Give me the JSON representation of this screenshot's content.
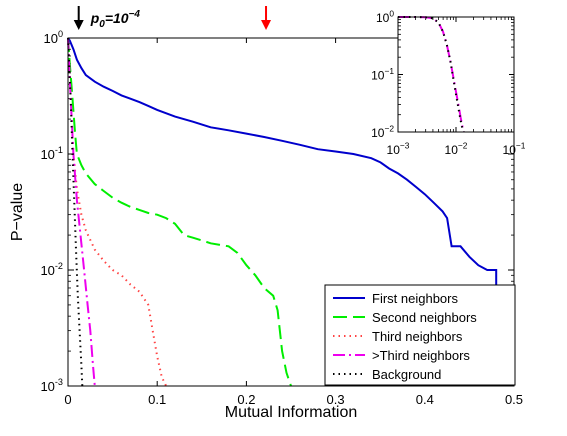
{
  "chart_data": [
    {
      "type": "line",
      "title": "",
      "xlabel": "Mutual Information",
      "ylabel": "P−value",
      "xscale": "linear",
      "yscale": "log",
      "xlim": [
        0,
        0.5
      ],
      "ylim": [
        0.001,
        1
      ],
      "x_ticks": [
        {
          "value": 0,
          "label": "0"
        },
        {
          "value": 0.1,
          "label": "0.1"
        },
        {
          "value": 0.2,
          "label": "0.2"
        },
        {
          "value": 0.3,
          "label": "0.3"
        },
        {
          "value": 0.4,
          "label": "0.4"
        },
        {
          "value": 0.5,
          "label": "0.5"
        }
      ],
      "y_ticks": [
        {
          "value": 1,
          "base": "10",
          "exp": "0"
        },
        {
          "value": 0.1,
          "base": "10",
          "exp": "-1"
        },
        {
          "value": 0.01,
          "base": "10",
          "exp": "-2"
        },
        {
          "value": 0.001,
          "base": "10",
          "exp": "-3"
        }
      ],
      "grid": false,
      "legend_position": "bottom-right",
      "annotations": [
        {
          "name": "p0-arrow",
          "x": 0.012,
          "color": "#000000",
          "label_main": "p",
          "label_sub": "0",
          "label_eq": "=10",
          "label_sup": "−4"
        },
        {
          "name": "threshold-arrow",
          "x": 0.222,
          "color": "#ff0000"
        }
      ],
      "series": [
        {
          "name": "First neighbors",
          "color": "#0000cc",
          "dash": "solid",
          "points": [
            [
              0,
              1
            ],
            [
              0.002,
              0.95
            ],
            [
              0.006,
              0.8
            ],
            [
              0.01,
              0.65
            ],
            [
              0.015,
              0.55
            ],
            [
              0.02,
              0.48
            ],
            [
              0.03,
              0.42
            ],
            [
              0.04,
              0.38
            ],
            [
              0.05,
              0.35
            ],
            [
              0.06,
              0.32
            ],
            [
              0.07,
              0.3
            ],
            [
              0.08,
              0.28
            ],
            [
              0.09,
              0.26
            ],
            [
              0.1,
              0.24
            ],
            [
              0.12,
              0.21
            ],
            [
              0.14,
              0.19
            ],
            [
              0.16,
              0.17
            ],
            [
              0.18,
              0.16
            ],
            [
              0.2,
              0.15
            ],
            [
              0.22,
              0.14
            ],
            [
              0.24,
              0.13
            ],
            [
              0.26,
              0.12
            ],
            [
              0.28,
              0.11
            ],
            [
              0.3,
              0.105
            ],
            [
              0.32,
              0.1
            ],
            [
              0.34,
              0.092
            ],
            [
              0.35,
              0.085
            ],
            [
              0.36,
              0.075
            ],
            [
              0.37,
              0.068
            ],
            [
              0.38,
              0.06
            ],
            [
              0.39,
              0.052
            ],
            [
              0.4,
              0.045
            ],
            [
              0.41,
              0.038
            ],
            [
              0.42,
              0.032
            ],
            [
              0.425,
              0.028
            ],
            [
              0.43,
              0.016
            ],
            [
              0.44,
              0.016
            ],
            [
              0.45,
              0.013
            ],
            [
              0.46,
              0.011
            ],
            [
              0.47,
              0.01
            ],
            [
              0.48,
              0.01
            ],
            [
              0.48,
              0.0065
            ],
            [
              0.49,
              0.0055
            ],
            [
              0.5,
              0.005
            ]
          ]
        },
        {
          "name": "Second neighbors",
          "color": "#00ee00",
          "dash": "long-dash",
          "points": [
            [
              0,
              1
            ],
            [
              0.002,
              0.6
            ],
            [
              0.005,
              0.3
            ],
            [
              0.008,
              0.15
            ],
            [
              0.01,
              0.1
            ],
            [
              0.015,
              0.08
            ],
            [
              0.02,
              0.068
            ],
            [
              0.03,
              0.055
            ],
            [
              0.04,
              0.048
            ],
            [
              0.05,
              0.042
            ],
            [
              0.06,
              0.038
            ],
            [
              0.07,
              0.035
            ],
            [
              0.08,
              0.033
            ],
            [
              0.09,
              0.031
            ],
            [
              0.1,
              0.03
            ],
            [
              0.11,
              0.028
            ],
            [
              0.12,
              0.025
            ],
            [
              0.13,
              0.02
            ],
            [
              0.14,
              0.019
            ],
            [
              0.15,
              0.018
            ],
            [
              0.16,
              0.017
            ],
            [
              0.18,
              0.016
            ],
            [
              0.19,
              0.014
            ],
            [
              0.2,
              0.011
            ],
            [
              0.21,
              0.009
            ],
            [
              0.22,
              0.007
            ],
            [
              0.23,
              0.006
            ],
            [
              0.235,
              0.0045
            ],
            [
              0.24,
              0.002
            ],
            [
              0.245,
              0.0013
            ],
            [
              0.25,
              0.001
            ]
          ]
        },
        {
          "name": "Third neighbors",
          "color": "#ff4444",
          "dash": "dotted",
          "points": [
            [
              0,
              1
            ],
            [
              0.003,
              0.3
            ],
            [
              0.006,
              0.1
            ],
            [
              0.01,
              0.05
            ],
            [
              0.015,
              0.03
            ],
            [
              0.02,
              0.022
            ],
            [
              0.03,
              0.015
            ],
            [
              0.04,
              0.012
            ],
            [
              0.05,
              0.01
            ],
            [
              0.06,
              0.009
            ],
            [
              0.07,
              0.0075
            ],
            [
              0.08,
              0.0065
            ],
            [
              0.09,
              0.005
            ],
            [
              0.095,
              0.003
            ],
            [
              0.1,
              0.0018
            ],
            [
              0.105,
              0.0012
            ],
            [
              0.11,
              0.001
            ]
          ]
        },
        {
          "name": ">Third neighbors",
          "color": "#ee00ee",
          "dash": "dash-dot",
          "points": [
            [
              0,
              1
            ],
            [
              0.003,
              0.3
            ],
            [
              0.006,
              0.1
            ],
            [
              0.01,
              0.04
            ],
            [
              0.014,
              0.02
            ],
            [
              0.018,
              0.01
            ],
            [
              0.022,
              0.005
            ],
            [
              0.025,
              0.003
            ],
            [
              0.028,
              0.0015
            ],
            [
              0.03,
              0.001
            ]
          ]
        },
        {
          "name": "Background",
          "color": "#000000",
          "dash": "dotted",
          "points": [
            [
              0,
              1
            ],
            [
              0.003,
              0.3
            ],
            [
              0.005,
              0.1
            ],
            [
              0.007,
              0.04
            ],
            [
              0.009,
              0.015
            ],
            [
              0.011,
              0.006
            ],
            [
              0.013,
              0.003
            ],
            [
              0.015,
              0.0015
            ],
            [
              0.016,
              0.001
            ]
          ]
        }
      ]
    },
    {
      "type": "line",
      "title": "",
      "xlabel": "",
      "ylabel": "",
      "xscale": "log",
      "yscale": "log",
      "xlim": [
        0.001,
        0.1
      ],
      "ylim": [
        0.01,
        1
      ],
      "x_ticks": [
        {
          "value": 0.001,
          "base": "10",
          "exp": "−3"
        },
        {
          "value": 0.01,
          "base": "10",
          "exp": "−2"
        },
        {
          "value": 0.1,
          "base": "10",
          "exp": "−1"
        }
      ],
      "y_ticks": [
        {
          "value": 1,
          "base": "10",
          "exp": "0"
        },
        {
          "value": 0.1,
          "base": "10",
          "exp": "−1"
        },
        {
          "value": 0.01,
          "base": "10",
          "exp": "−2"
        }
      ],
      "grid": false,
      "series": [
        {
          "color": "#ee00ee",
          "dash": "dash-dot",
          "points": [
            [
              0.001,
              1
            ],
            [
              0.002,
              1
            ],
            [
              0.003,
              0.99
            ],
            [
              0.004,
              0.95
            ],
            [
              0.005,
              0.8
            ],
            [
              0.006,
              0.55
            ],
            [
              0.007,
              0.32
            ],
            [
              0.008,
              0.17
            ],
            [
              0.009,
              0.09
            ],
            [
              0.01,
              0.05
            ],
            [
              0.011,
              0.03
            ],
            [
              0.012,
              0.018
            ],
            [
              0.013,
              0.012
            ],
            [
              0.0135,
              0.01
            ]
          ]
        },
        {
          "color": "#000000",
          "dash": "dotted",
          "points": [
            [
              0.001,
              1
            ],
            [
              0.002,
              1
            ],
            [
              0.003,
              0.99
            ],
            [
              0.004,
              0.95
            ],
            [
              0.005,
              0.8
            ],
            [
              0.006,
              0.55
            ],
            [
              0.007,
              0.32
            ],
            [
              0.008,
              0.17
            ],
            [
              0.009,
              0.085
            ],
            [
              0.01,
              0.045
            ],
            [
              0.011,
              0.026
            ],
            [
              0.012,
              0.016
            ],
            [
              0.013,
              0.011
            ],
            [
              0.0135,
              0.01
            ]
          ]
        }
      ]
    }
  ]
}
